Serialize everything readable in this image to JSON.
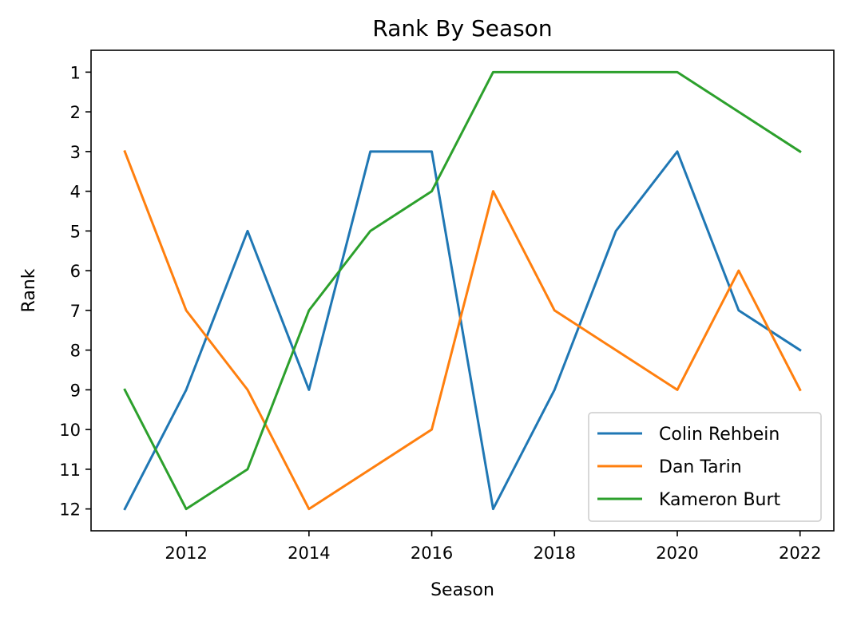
{
  "chart_data": {
    "type": "line",
    "title": "Rank By Season",
    "xlabel": "Season",
    "ylabel": "Rank",
    "x": [
      2011,
      2012,
      2013,
      2014,
      2015,
      2016,
      2017,
      2018,
      2019,
      2020,
      2021,
      2022
    ],
    "xticks": [
      2012,
      2014,
      2016,
      2018,
      2020,
      2022
    ],
    "yticks": [
      1,
      2,
      3,
      4,
      5,
      6,
      7,
      8,
      9,
      10,
      11,
      12
    ],
    "xlim": [
      2010.45,
      2022.55
    ],
    "ylim": [
      12.55,
      0.45
    ],
    "y_inverted": true,
    "grid": false,
    "legend_position": "lower-right",
    "series": [
      {
        "name": "Colin Rehbein",
        "color": "#1f77b4",
        "values": [
          12,
          9,
          5,
          9,
          3,
          3,
          12,
          9,
          5,
          3,
          7,
          8
        ]
      },
      {
        "name": "Dan Tarin",
        "color": "#ff7f0e",
        "values": [
          3,
          7,
          9,
          12,
          11,
          10,
          4,
          7,
          8,
          9,
          6,
          9
        ]
      },
      {
        "name": "Kameron Burt",
        "color": "#2ca02c",
        "values": [
          9,
          12,
          11,
          7,
          5,
          4,
          1,
          1,
          1,
          1,
          2,
          3
        ]
      }
    ]
  }
}
